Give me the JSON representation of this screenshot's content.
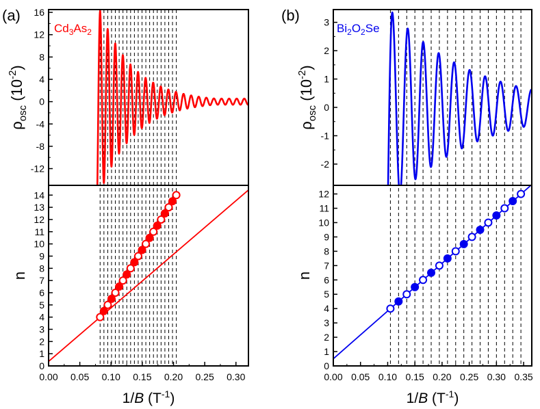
{
  "chart_data": [
    {
      "panel": "(a)",
      "material_label": {
        "base": "Cd",
        "sub1": "3",
        "mid": "As",
        "sub2": "2"
      },
      "color": "#ff0000",
      "xlim": [
        0.0,
        0.32
      ],
      "xticks": [
        0.0,
        0.05,
        0.1,
        0.15,
        0.2,
        0.25,
        0.3
      ],
      "xtick_labels": [
        "0.00",
        "0.05",
        "0.10",
        "0.15",
        "0.20",
        "0.25",
        "0.30"
      ],
      "xlabel": {
        "pre": "1/",
        "italic": "B",
        "post": " (T",
        "sup": "-1",
        "end": ")"
      },
      "top": {
        "type": "line",
        "ylabel": {
          "rho": "ρ",
          "sub": "osc",
          "unit": " (10",
          "sup": "-2",
          "close": ")"
        },
        "ylim": [
          -15,
          16.5
        ],
        "yticks": [
          -12,
          -8,
          -4,
          0,
          4,
          8,
          12,
          16
        ],
        "ytick_labels": [
          "-12",
          "-8",
          "-4",
          "0",
          "4",
          "8",
          "12",
          "16"
        ],
        "oscillation": {
          "x_start": 0.074,
          "first_peak": 0.0825,
          "period": 0.01215,
          "amp_first_peak": 16.3,
          "amp_first_trough": 12.0,
          "decay_factor": 0.8,
          "amp_floor": 0.55
        }
      },
      "bottom": {
        "type": "scatter",
        "ylabel": "n",
        "ylim": [
          0,
          14.8
        ],
        "yticks": [
          0,
          1,
          2,
          3,
          4,
          5,
          6,
          7,
          8,
          9,
          10,
          11,
          12,
          13,
          14
        ],
        "ytick_labels": [
          "0",
          "1",
          "2",
          "3",
          "4",
          "5",
          "6",
          "7",
          "8",
          "9",
          "10",
          "11",
          "12",
          "13",
          "14"
        ],
        "fit_line": {
          "intercept": 0.37,
          "slope": 43.9
        },
        "points": [
          {
            "x": 0.0825,
            "n": 4.0,
            "filled": false
          },
          {
            "x": 0.0886,
            "n": 4.5,
            "filled": true
          },
          {
            "x": 0.0947,
            "n": 5.0,
            "filled": false
          },
          {
            "x": 0.1008,
            "n": 5.5,
            "filled": true
          },
          {
            "x": 0.1069,
            "n": 6.0,
            "filled": false
          },
          {
            "x": 0.113,
            "n": 6.5,
            "filled": true
          },
          {
            "x": 0.1191,
            "n": 7.0,
            "filled": false
          },
          {
            "x": 0.1252,
            "n": 7.5,
            "filled": true
          },
          {
            "x": 0.1313,
            "n": 8.0,
            "filled": false
          },
          {
            "x": 0.1374,
            "n": 8.5,
            "filled": true
          },
          {
            "x": 0.1435,
            "n": 9.0,
            "filled": false
          },
          {
            "x": 0.1496,
            "n": 9.5,
            "filled": true
          },
          {
            "x": 0.1557,
            "n": 10.0,
            "filled": false
          },
          {
            "x": 0.1618,
            "n": 10.5,
            "filled": true
          },
          {
            "x": 0.1679,
            "n": 11.0,
            "filled": false
          },
          {
            "x": 0.174,
            "n": 11.5,
            "filled": true
          },
          {
            "x": 0.1801,
            "n": 12.0,
            "filled": false
          },
          {
            "x": 0.1862,
            "n": 12.5,
            "filled": true
          },
          {
            "x": 0.1923,
            "n": 13.0,
            "filled": false
          },
          {
            "x": 0.1984,
            "n": 13.5,
            "filled": true
          },
          {
            "x": 0.2045,
            "n": 14.0,
            "filled": false
          }
        ]
      },
      "dashed_lines_x": [
        0.0825,
        0.0886,
        0.0947,
        0.1008,
        0.1069,
        0.113,
        0.1191,
        0.1252,
        0.1313,
        0.1374,
        0.1435,
        0.1496,
        0.1557,
        0.1618,
        0.1679,
        0.174,
        0.1801,
        0.1862,
        0.1923,
        0.1984,
        0.2045
      ]
    },
    {
      "panel": "(b)",
      "material_label": {
        "base": "Bi",
        "sub1": "2",
        "mid": "O",
        "sub2": "2",
        "end": "Se"
      },
      "color": "#0000ee",
      "xlim": [
        0.0,
        0.365
      ],
      "xticks": [
        0.0,
        0.05,
        0.1,
        0.15,
        0.2,
        0.25,
        0.3,
        0.35
      ],
      "xtick_labels": [
        "0.00",
        "0.05",
        "0.10",
        "0.15",
        "0.20",
        "0.25",
        "0.30",
        "0.35"
      ],
      "xlabel": {
        "pre": "1/",
        "italic": "B",
        "post": " (T",
        "sup": "-1",
        "end": ")"
      },
      "top": {
        "type": "line",
        "ylabel": {
          "rho": "ρ",
          "sub": "osc",
          "unit": " (10",
          "sup": "-2",
          "close": ")"
        },
        "ylim": [
          -2.75,
          3.45
        ],
        "yticks": [
          -2,
          -1,
          0,
          1,
          2,
          3
        ],
        "ytick_labels": [
          "-2",
          "-1",
          "0",
          "1",
          "2",
          "3"
        ],
        "oscillation": {
          "x_start": 0.1,
          "first_peak": 0.1085,
          "period": 0.02845,
          "amp_first_peak": 3.35,
          "amp_first_trough": 2.55,
          "decay_factor": 0.83,
          "amp_floor": 0.42
        }
      },
      "bottom": {
        "type": "scatter",
        "ylabel": "n",
        "ylim": [
          0,
          12.6
        ],
        "yticks": [
          0,
          1,
          2,
          3,
          4,
          5,
          6,
          7,
          8,
          9,
          10,
          11,
          12
        ],
        "ytick_labels": [
          "0",
          "1",
          "2",
          "3",
          "4",
          "5",
          "6",
          "7",
          "8",
          "9",
          "10",
          "11",
          "12"
        ],
        "fit_line": {
          "intercept": 0.5,
          "slope": 33.3
        },
        "points": [
          {
            "x": 0.105,
            "n": 4.0,
            "filled": false
          },
          {
            "x": 0.12,
            "n": 4.5,
            "filled": true
          },
          {
            "x": 0.135,
            "n": 5.0,
            "filled": false
          },
          {
            "x": 0.15,
            "n": 5.5,
            "filled": true
          },
          {
            "x": 0.165,
            "n": 6.0,
            "filled": false
          },
          {
            "x": 0.18,
            "n": 6.5,
            "filled": true
          },
          {
            "x": 0.195,
            "n": 7.0,
            "filled": false
          },
          {
            "x": 0.21,
            "n": 7.5,
            "filled": true
          },
          {
            "x": 0.225,
            "n": 8.0,
            "filled": false
          },
          {
            "x": 0.24,
            "n": 8.5,
            "filled": true
          },
          {
            "x": 0.255,
            "n": 9.0,
            "filled": false
          },
          {
            "x": 0.27,
            "n": 9.5,
            "filled": true
          },
          {
            "x": 0.285,
            "n": 10.0,
            "filled": false
          },
          {
            "x": 0.3,
            "n": 10.5,
            "filled": true
          },
          {
            "x": 0.315,
            "n": 11.0,
            "filled": false
          },
          {
            "x": 0.33,
            "n": 11.5,
            "filled": true
          },
          {
            "x": 0.345,
            "n": 12.0,
            "filled": false
          }
        ]
      },
      "dashed_lines_x": [
        0.105,
        0.12,
        0.135,
        0.15,
        0.165,
        0.18,
        0.195,
        0.21,
        0.225,
        0.24,
        0.255,
        0.27,
        0.285,
        0.3,
        0.315,
        0.33,
        0.345
      ]
    }
  ]
}
